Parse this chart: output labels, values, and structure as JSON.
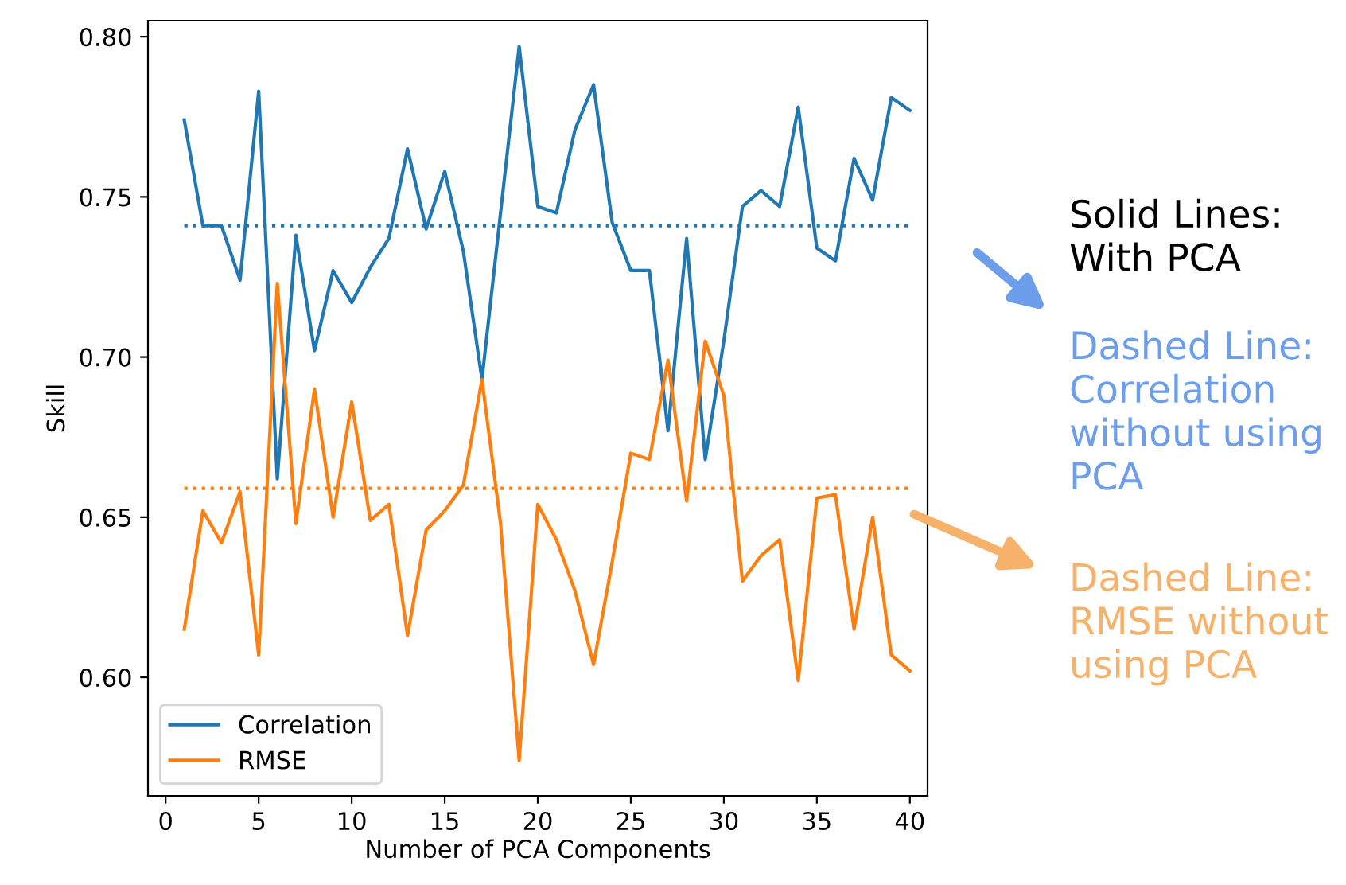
{
  "chart_data": {
    "type": "line",
    "xlabel": "Number of PCA Components",
    "ylabel": "Skill",
    "x": [
      1,
      2,
      3,
      4,
      5,
      6,
      7,
      8,
      9,
      10,
      11,
      12,
      13,
      14,
      15,
      16,
      17,
      18,
      19,
      20,
      21,
      22,
      23,
      24,
      25,
      26,
      27,
      28,
      29,
      30,
      31,
      32,
      33,
      34,
      35,
      36,
      37,
      38,
      39,
      40
    ],
    "series": [
      {
        "name": "Correlation",
        "color": "#1f77b4",
        "values": [
          0.774,
          0.741,
          0.741,
          0.724,
          0.783,
          0.662,
          0.738,
          0.702,
          0.727,
          0.717,
          0.728,
          0.737,
          0.765,
          0.74,
          0.758,
          0.733,
          0.693,
          0.745,
          0.797,
          0.747,
          0.745,
          0.771,
          0.785,
          0.742,
          0.727,
          0.727,
          0.677,
          0.737,
          0.668,
          0.705,
          0.747,
          0.752,
          0.747,
          0.778,
          0.734,
          0.73,
          0.762,
          0.749,
          0.781,
          0.777
        ]
      },
      {
        "name": "RMSE",
        "color": "#ff7f0e",
        "values": [
          0.615,
          0.652,
          0.642,
          0.658,
          0.607,
          0.723,
          0.648,
          0.69,
          0.65,
          0.686,
          0.649,
          0.654,
          0.613,
          0.646,
          0.652,
          0.66,
          0.693,
          0.648,
          0.574,
          0.654,
          0.643,
          0.627,
          0.604,
          0.636,
          0.67,
          0.668,
          0.699,
          0.655,
          0.705,
          0.688,
          0.63,
          0.638,
          0.643,
          0.599,
          0.656,
          0.657,
          0.615,
          0.65,
          0.607,
          0.602
        ]
      }
    ],
    "ref_lines": [
      {
        "axis": "y",
        "value": 0.741,
        "color": "#1f77b4",
        "line_style": "dotted"
      },
      {
        "axis": "y",
        "value": 0.659,
        "color": "#ff7f0e",
        "line_style": "dotted"
      }
    ],
    "annotations": [
      "Solid Lines:\nWith PCA",
      "Dashed Line:\nCorrelation\nwithout using\nPCA",
      "Dashed Line:\nRMSE without\nusing PCA"
    ],
    "xlim": [
      -0.95,
      40.95
    ],
    "ylim": [
      0.563,
      0.805
    ],
    "xticks": [
      0,
      5,
      10,
      15,
      20,
      25,
      30,
      35,
      40
    ],
    "yticks": [
      {
        "value": 0.6,
        "label": "0.60"
      },
      0.65,
      {
        "value": 0.7,
        "label": "0.70"
      },
      0.75,
      {
        "value": 0.8,
        "label": "0.80"
      }
    ],
    "line_style": "solid",
    "marker": "none",
    "legend": "bottom left",
    "grid": false
  }
}
